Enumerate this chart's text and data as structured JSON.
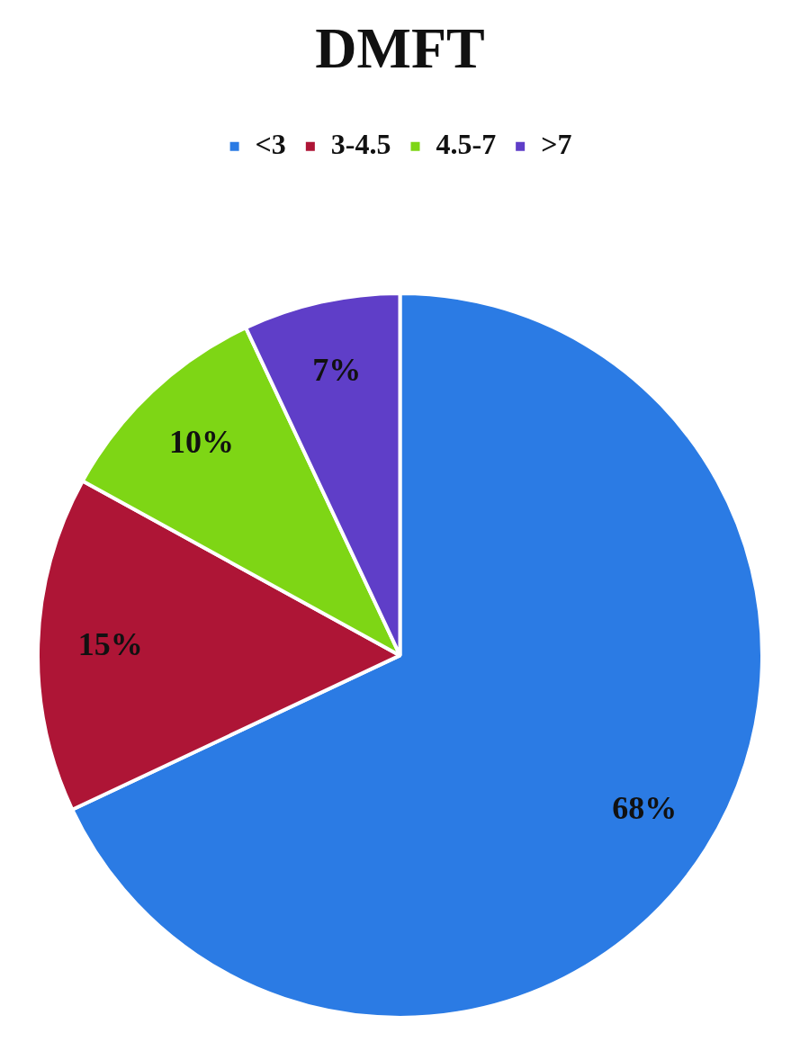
{
  "chart_data": {
    "type": "pie",
    "title": "DMFT",
    "categories": [
      "<3",
      "3-4.5",
      "4.5-7",
      ">7"
    ],
    "values": [
      68,
      15,
      10,
      7
    ],
    "colors": [
      "#2b7be4",
      "#ae1536",
      "#7ed615",
      "#5f3ec8"
    ],
    "value_labels": [
      "68%",
      "15%",
      "10%",
      "7%"
    ],
    "legend": "top"
  }
}
